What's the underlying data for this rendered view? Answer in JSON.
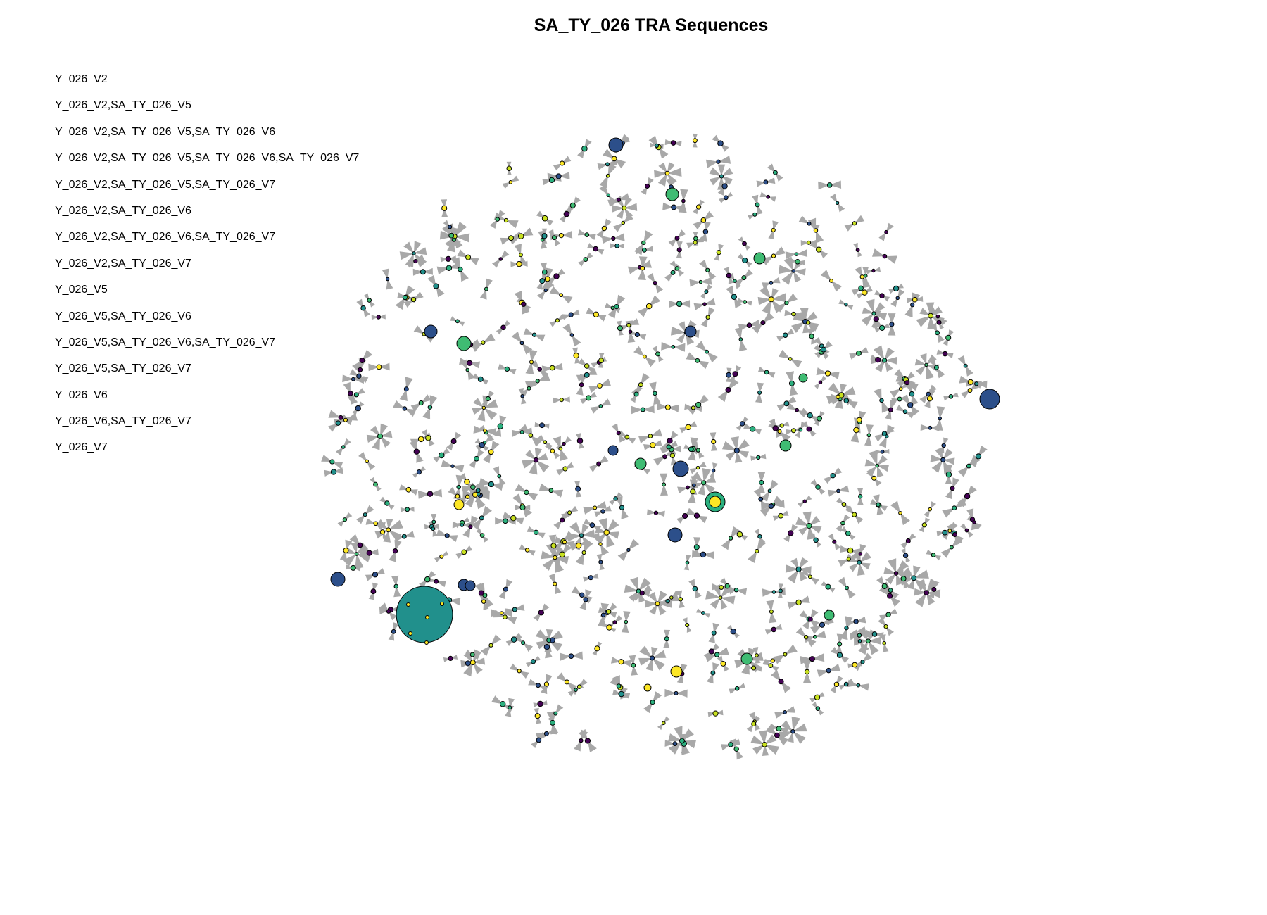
{
  "title": "SA_TY_026 TRA Sequences",
  "legend": {
    "entries": [
      "Y_026_V2",
      "Y_026_V2,SA_TY_026_V5",
      "Y_026_V2,SA_TY_026_V5,SA_TY_026_V6",
      "Y_026_V2,SA_TY_026_V5,SA_TY_026_V6,SA_TY_026_V7",
      "Y_026_V2,SA_TY_026_V5,SA_TY_026_V7",
      "Y_026_V2,SA_TY_026_V6",
      "Y_026_V2,SA_TY_026_V6,SA_TY_026_V7",
      "Y_026_V2,SA_TY_026_V7",
      "Y_026_V5",
      "Y_026_V5,SA_TY_026_V6",
      "Y_026_V5,SA_TY_026_V6,SA_TY_026_V7",
      "Y_026_V5,SA_TY_026_V7",
      "Y_026_V6",
      "Y_026_V6,SA_TY_026_V7",
      "Y_026_V7"
    ]
  },
  "colors": {
    "node_palette": [
      "#440154",
      "#2c4f8a",
      "#21908c",
      "#2bb07f",
      "#3fbc73",
      "#fde725",
      "#c8e020"
    ],
    "edge_color": "#a8a8a8",
    "node_outline": "#000000"
  }
}
